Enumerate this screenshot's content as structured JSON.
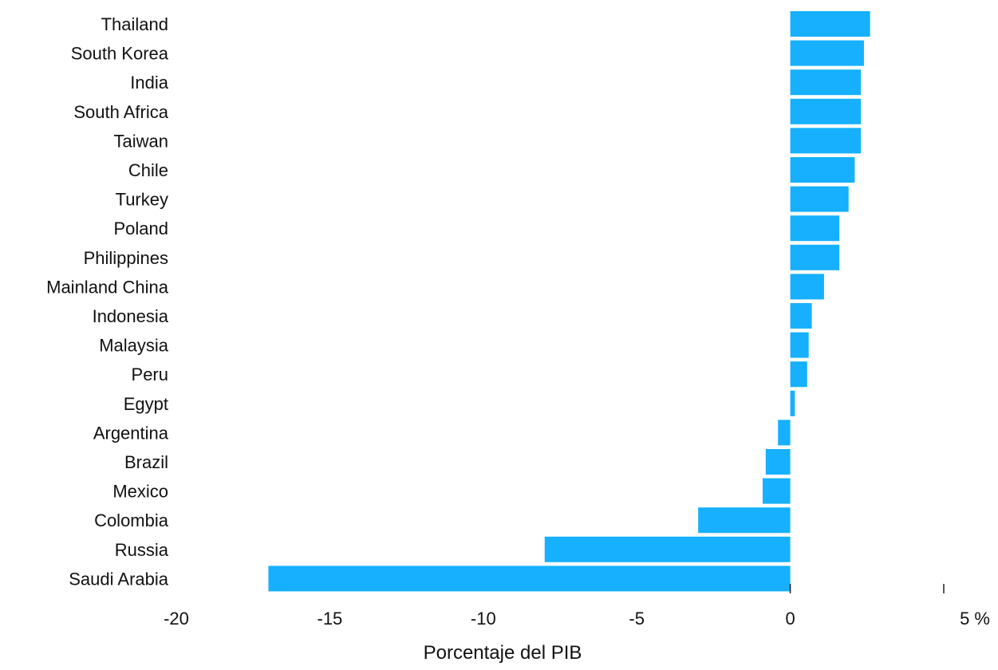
{
  "chart_data": {
    "type": "bar",
    "orientation": "horizontal",
    "categories": [
      "Thailand",
      "South Korea",
      "India",
      "South Africa",
      "Taiwan",
      "Chile",
      "Turkey",
      "Poland",
      "Philippines",
      "Mainland China",
      "Indonesia",
      "Malaysia",
      "Peru",
      "Egypt",
      "Argentina",
      "Brazil",
      "Mexico",
      "Colombia",
      "Russia",
      "Saudi Arabia"
    ],
    "values": [
      2.6,
      2.4,
      2.3,
      2.3,
      2.3,
      2.1,
      1.9,
      1.6,
      1.6,
      1.1,
      0.7,
      0.6,
      0.55,
      0.15,
      -0.4,
      -0.8,
      -0.9,
      -3.0,
      -8.0,
      -17.0
    ],
    "xlabel": "Porcentaje del PIB",
    "ylabel": "",
    "xlim": [
      -20,
      5
    ],
    "xticks": [
      -20,
      -15,
      -10,
      -5,
      0,
      5
    ],
    "xtick_labels": [
      "-20",
      "-15",
      "-10",
      "-5",
      "0",
      "5 %"
    ],
    "bar_color": "#16b0ff",
    "grid": false,
    "legend": false
  }
}
